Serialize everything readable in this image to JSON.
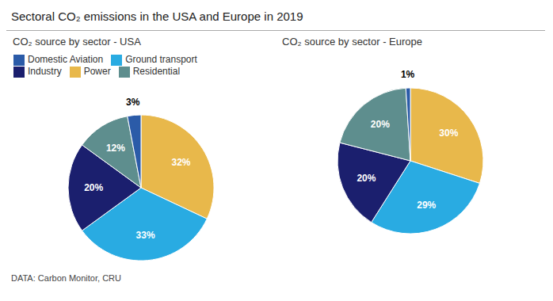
{
  "title": "Sectoral CO₂ emissions in the USA and Europe in 2019",
  "annotations": [
    "DATA: Carbon Monitor, CRU"
  ],
  "chart_data": [
    {
      "type": "pie",
      "subtitle": "CO₂ source by sector - USA",
      "categories": [
        "Power",
        "Ground transport",
        "Industry",
        "Residential",
        "Domestic Aviation"
      ],
      "values": [
        32,
        33,
        20,
        12,
        3
      ],
      "value_labels": [
        "32%",
        "33%",
        "20%",
        "12%",
        "3%"
      ],
      "colors": [
        "#E8B84B",
        "#29ABE2",
        "#1B1F6E",
        "#5E8E8E",
        "#2B5BA8"
      ],
      "data_labels": true,
      "legend": "upper left"
    },
    {
      "type": "pie",
      "subtitle": "CO₂ source by sector - Europe",
      "categories": [
        "Power",
        "Ground transport",
        "Industry",
        "Residential",
        "Domestic Aviation"
      ],
      "values": [
        30,
        29,
        20,
        20,
        1
      ],
      "value_labels": [
        "30%",
        "29%",
        "20%",
        "20%",
        "1%"
      ],
      "colors": [
        "#E8B84B",
        "#29ABE2",
        "#1B1F6E",
        "#5E8E8E",
        "#2B5BA8"
      ],
      "data_labels": true
    }
  ]
}
